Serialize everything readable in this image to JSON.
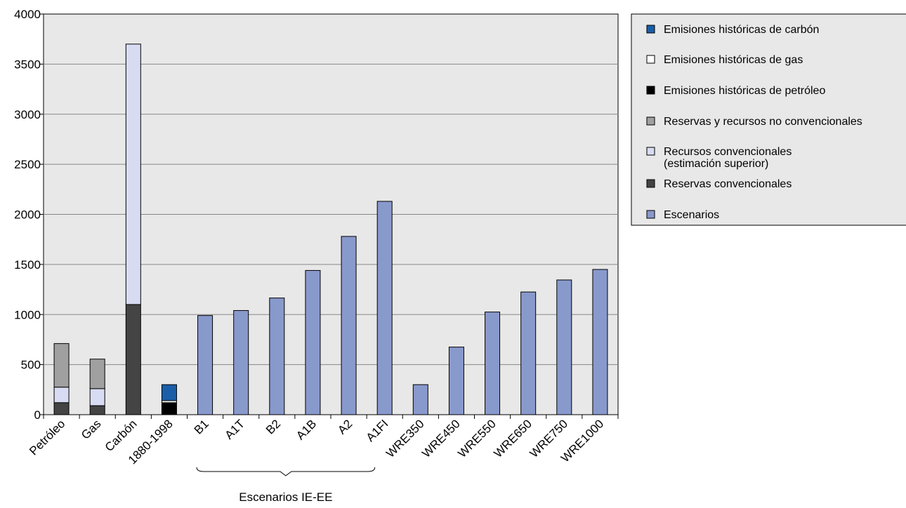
{
  "chart_data": {
    "type": "bar",
    "stacked": true,
    "ylim": [
      0,
      4000
    ],
    "yticks": [
      0,
      500,
      1000,
      1500,
      2000,
      2500,
      3000,
      3500,
      4000
    ],
    "grid": true,
    "legend_position": "right-top",
    "categories": [
      "Petróleo",
      "Gas",
      "Carbón",
      "1880-1998",
      "B1",
      "A1T",
      "B2",
      "A1B",
      "A2",
      "A1FI",
      "WRE350",
      "WRE450",
      "WRE550",
      "WRE650",
      "WRE750",
      "WRE1000"
    ],
    "series": [
      {
        "name": "Reservas convencionales",
        "color": "#444444",
        "values": [
          120,
          90,
          1100,
          0,
          0,
          0,
          0,
          0,
          0,
          0,
          0,
          0,
          0,
          0,
          0,
          0
        ]
      },
      {
        "name": "Recursos convencionales\n(estimación superior)",
        "color": "#d8dcf2",
        "values": [
          155,
          170,
          2600,
          0,
          0,
          0,
          0,
          0,
          0,
          0,
          0,
          0,
          0,
          0,
          0,
          0
        ]
      },
      {
        "name": "Reservas y recursos no convencionales",
        "color": "#a0a0a0",
        "values": [
          435,
          295,
          0,
          0,
          0,
          0,
          0,
          0,
          0,
          0,
          0,
          0,
          0,
          0,
          0,
          0
        ]
      },
      {
        "name": "Emisiones históricas de petróleo",
        "color": "#000000",
        "values": [
          0,
          0,
          0,
          120,
          0,
          0,
          0,
          0,
          0,
          0,
          0,
          0,
          0,
          0,
          0,
          0
        ]
      },
      {
        "name": "Emisiones históricas de gas",
        "color": "#ffffff",
        "values": [
          0,
          0,
          0,
          20,
          0,
          0,
          0,
          0,
          0,
          0,
          0,
          0,
          0,
          0,
          0,
          0
        ]
      },
      {
        "name": "Emisiones históricas de carbón",
        "color": "#1a5ea8",
        "values": [
          0,
          0,
          0,
          160,
          0,
          0,
          0,
          0,
          0,
          0,
          0,
          0,
          0,
          0,
          0,
          0
        ]
      },
      {
        "name": "Escenarios",
        "color": "#8899cc",
        "values": [
          0,
          0,
          0,
          0,
          990,
          1040,
          1165,
          1440,
          1780,
          2130,
          300,
          675,
          1025,
          1225,
          1345,
          1450
        ]
      }
    ],
    "legend_order": [
      "Emisiones históricas de carbón",
      "Emisiones históricas de gas",
      "Emisiones históricas de petróleo",
      "Reservas y recursos no convencionales",
      "Recursos convencionales\n(estimación superior)",
      "Reservas convencionales",
      "Escenarios"
    ],
    "group_annotation": {
      "label": "Escenarios IE-EE",
      "from": "B1",
      "to": "A1FI"
    }
  }
}
